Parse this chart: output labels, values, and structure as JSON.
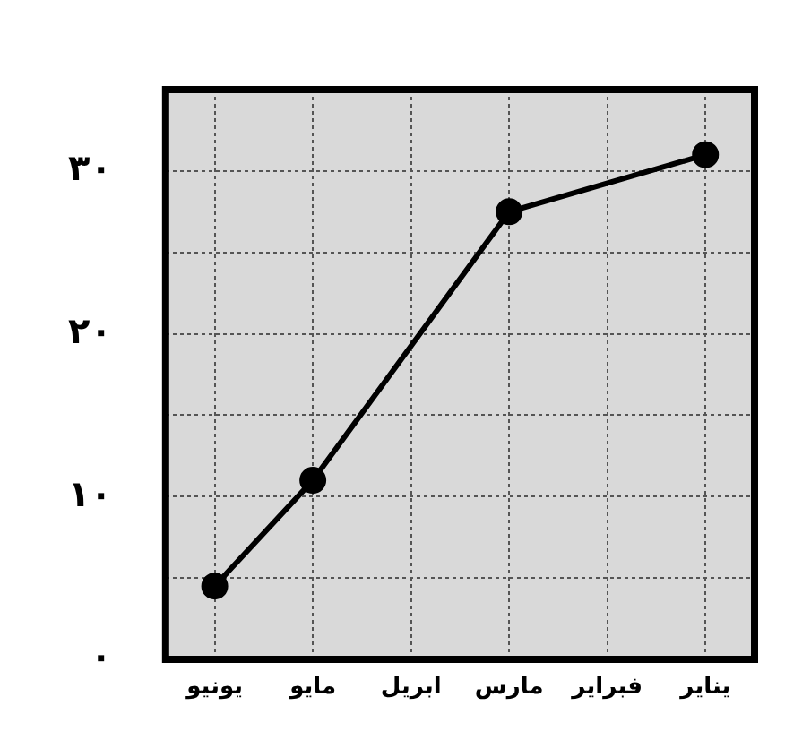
{
  "chart_data": {
    "type": "line",
    "categories": [
      "يونيو",
      "مايو",
      "ابريل",
      "مارس",
      "فبراير",
      "يناير"
    ],
    "series": [
      {
        "color": "#000000",
        "values": [
          4.5,
          11,
          null,
          27.5,
          null,
          31
        ]
      }
    ],
    "ylim": [
      0,
      35
    ],
    "yticks": [
      {
        "value": 0,
        "label": "٠"
      },
      {
        "value": 5,
        "label": null
      },
      {
        "value": 10,
        "label": "١٠"
      },
      {
        "value": 15,
        "label": null
      },
      {
        "value": 20,
        "label": "٢٠"
      },
      {
        "value": 25,
        "label": null
      },
      {
        "value": 30,
        "label": "٣٠"
      }
    ],
    "grid": true,
    "marker": "circle",
    "line_style": "solid"
  }
}
